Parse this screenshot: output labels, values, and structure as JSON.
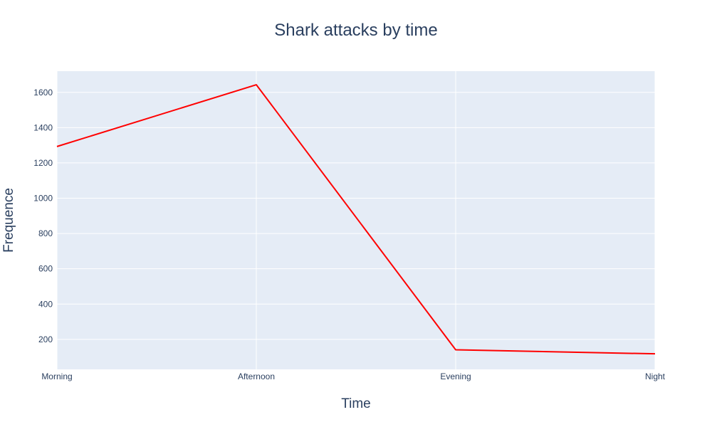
{
  "chart_data": {
    "type": "line",
    "title": "Shark attacks by time",
    "xlabel": "Time",
    "ylabel": "Frequence",
    "categories": [
      "Morning",
      "Afternoon",
      "Evening",
      "Night"
    ],
    "series": [
      {
        "values": [
          1293,
          1643,
          141,
          118
        ],
        "color": "#ff0000"
      }
    ],
    "ylim": [
      30,
      1720
    ],
    "yticks": [
      200,
      400,
      600,
      800,
      1000,
      1200,
      1400,
      1600
    ],
    "grid": true,
    "legend": "none"
  },
  "colors": {
    "plot_background": "#e5ecf6",
    "grid": "#ffffff",
    "text": "#2a3f5f",
    "line": "#ff0000"
  }
}
